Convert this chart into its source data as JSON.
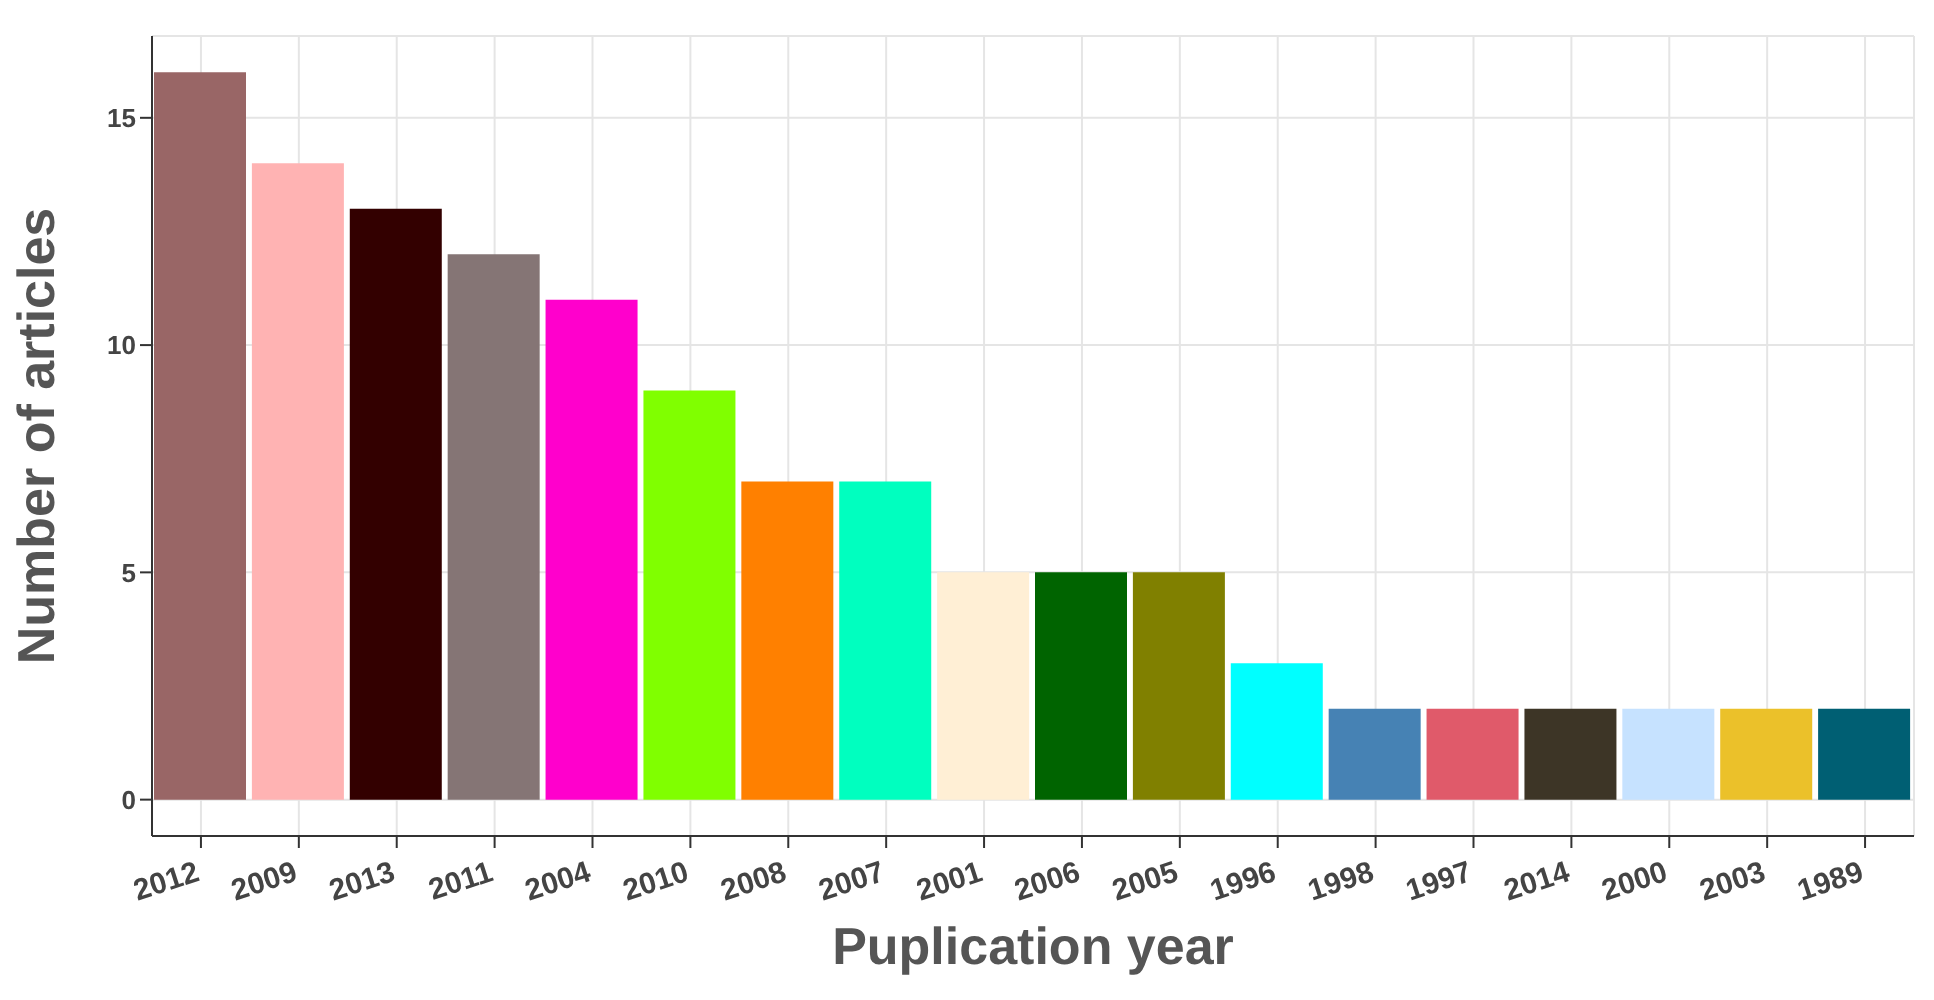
{
  "chart_data": {
    "type": "bar",
    "xlabel": "Puplication year",
    "ylabel": "Number of articles",
    "categories": [
      "2012",
      "2009",
      "2013",
      "2011",
      "2004",
      "2010",
      "2008",
      "2007",
      "2001",
      "2006",
      "2005",
      "1996",
      "1998",
      "1997",
      "2014",
      "2000",
      "2003",
      "1989"
    ],
    "values": [
      16,
      14,
      13,
      12,
      11,
      9,
      7,
      7,
      5,
      5,
      5,
      3,
      2,
      2,
      2,
      2,
      2,
      2
    ],
    "colors": [
      "#996666",
      "#ffb3b3",
      "#330000",
      "#857575",
      "#ff00cc",
      "#80ff00",
      "#ff8000",
      "#00ffbf",
      "#ffefd5",
      "#006400",
      "#808000",
      "#00ffff",
      "#4682b4",
      "#e05a6a",
      "#3d3526",
      "#c6e2ff",
      "#ebc12a",
      "#005f73"
    ],
    "ylim": [
      -0.8,
      16.8
    ],
    "yticks": [
      0,
      5,
      10,
      15
    ],
    "grid": true
  }
}
